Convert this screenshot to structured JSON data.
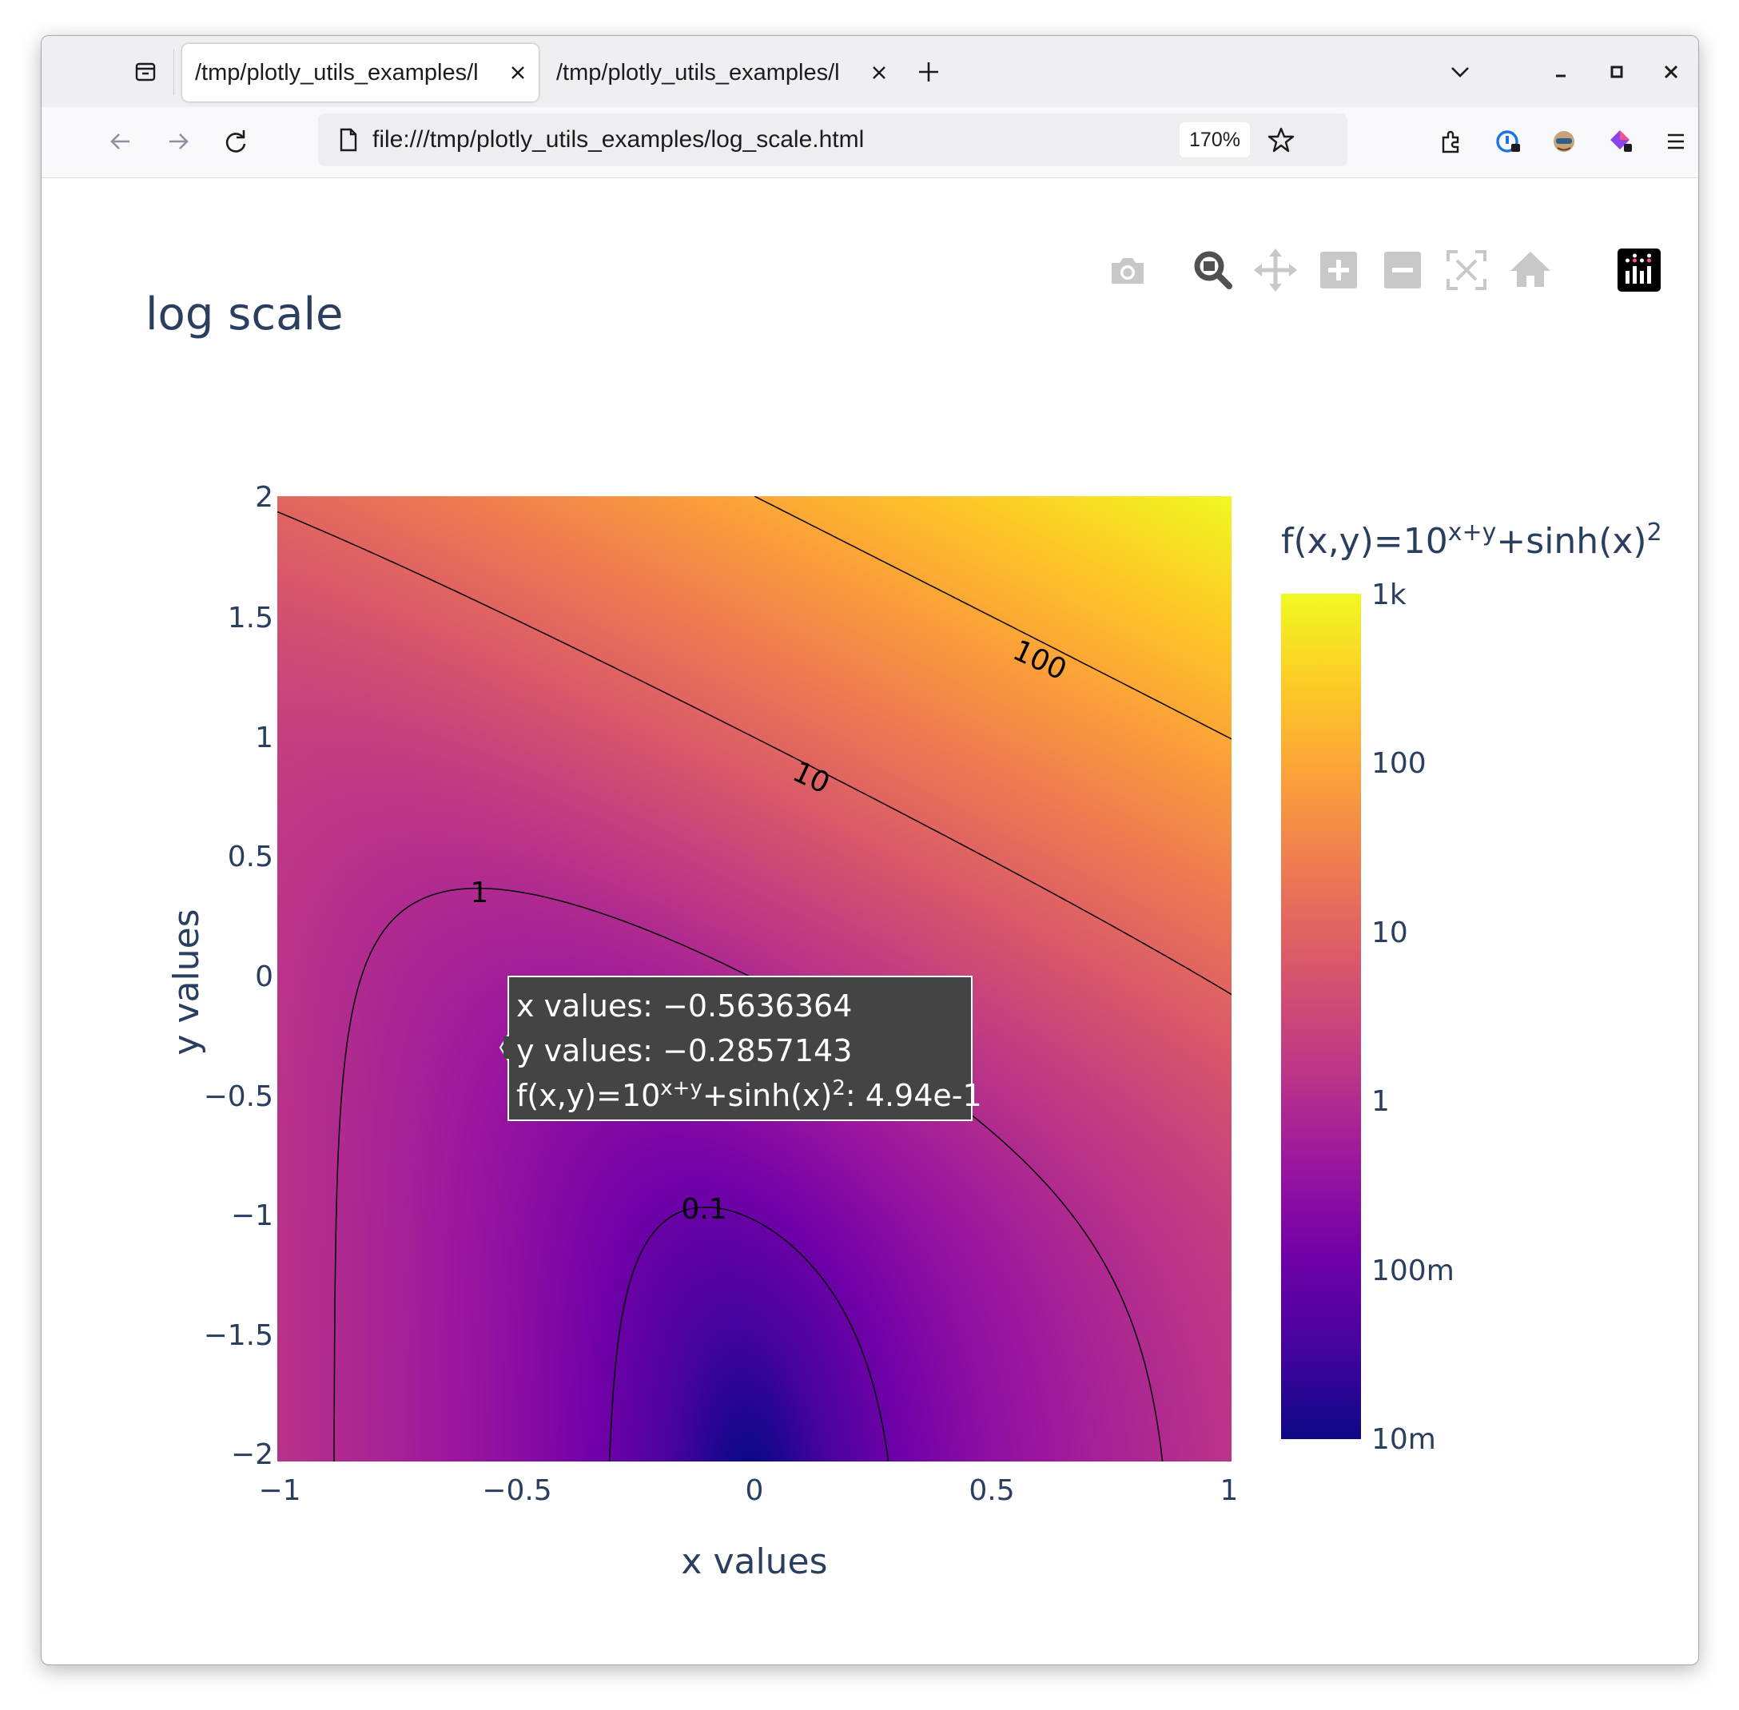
{
  "browser": {
    "tabs": [
      {
        "label": "/tmp/plotly_utils_examples/l",
        "active": true
      },
      {
        "label": "/tmp/plotly_utils_examples/l",
        "active": false
      }
    ],
    "url": "file:///tmp/plotly_utils_examples/log_scale.html",
    "zoom": "170%"
  },
  "modebar": {
    "buttons": [
      "camera-icon",
      "zoom-icon",
      "pan-icon",
      "zoom-in-icon",
      "zoom-out-icon",
      "autoscale-icon",
      "reset-axes-icon",
      "plotly-logo"
    ]
  },
  "chart_data": {
    "type": "contour",
    "title": "log scale",
    "xlabel": "x values",
    "ylabel": "y values",
    "xlim": [
      -1,
      1
    ],
    "ylim": [
      -2,
      2
    ],
    "x_ticks": [
      "−1",
      "−0.5",
      "0",
      "0.5",
      "1"
    ],
    "y_ticks": [
      "2",
      "1.5",
      "1",
      "0.5",
      "0",
      "−0.5",
      "−1",
      "−1.5",
      "−2"
    ],
    "function": "10^(x+y) + sinh(x)^2",
    "colorscale": "plasma",
    "color_scale": "log",
    "colorbar": {
      "title_main": "f(x,y)=10",
      "title_sup1": "x+y",
      "title_mid": "+sinh(x)",
      "title_sup2": "2",
      "ticks": [
        "1k",
        "100",
        "10",
        "1",
        "100m",
        "10m"
      ],
      "range": [
        0.01,
        1000
      ]
    },
    "contour_labels": [
      "100",
      "10",
      "1",
      "0.1"
    ],
    "contour_levels": [
      100,
      10,
      1,
      0.1
    ],
    "hover": {
      "x_line": "x values: −0.5636364",
      "y_line": "y values: −0.2857143",
      "f_prefix": "f(x,y)=10",
      "f_sup1": "x+y",
      "f_mid": "+sinh(x)",
      "f_sup2": "2",
      "f_value": ": 4.94e-1",
      "x": -0.5636364,
      "y": -0.2857143
    }
  }
}
